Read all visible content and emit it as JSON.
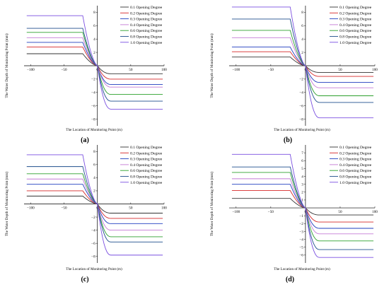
{
  "figure": {
    "panels": [
      "(a)",
      "(b)",
      "(c)",
      "(d)"
    ]
  },
  "legend_entries": [
    "0.1 Opening Degree",
    "0.2 Opening Degree",
    "0.3 Opening Degree",
    "0.4 Opening Degree",
    "0.6 Opening Degree",
    "0.8 Opening Degree",
    "1.0 Opening Degree"
  ],
  "series_colors": [
    "#333333",
    "#d62728",
    "#1f3dbf",
    "#c47ad6",
    "#2ca02c",
    "#1f4e8c",
    "#7a4fe0"
  ],
  "chart_data": [
    {
      "type": "line",
      "panel": "(a)",
      "xlabel": "The Location of Monitoring Point (m)",
      "ylabel": "The Water Depth of Monitoring Point (mm)",
      "xlim": [
        -110,
        100
      ],
      "ylim": [
        -9,
        9
      ],
      "xticks": [
        -100,
        -50,
        0,
        50,
        100
      ],
      "yticks": [
        -8,
        -6,
        -4,
        -2,
        0,
        2,
        4,
        6,
        8
      ],
      "series": [
        {
          "name": "0.1 Opening Degree",
          "upstream": 1.8,
          "downstream": -1.2
        },
        {
          "name": "0.2 Opening Degree",
          "upstream": 2.8,
          "downstream": -2.0
        },
        {
          "name": "0.3 Opening Degree",
          "upstream": 3.5,
          "downstream": -2.8
        },
        {
          "name": "0.4 Opening Degree",
          "upstream": 4.2,
          "downstream": -3.2
        },
        {
          "name": "0.6 Opening Degree",
          "upstream": 5.0,
          "downstream": -4.3
        },
        {
          "name": "0.8 Opening Degree",
          "upstream": 5.6,
          "downstream": -5.3
        },
        {
          "name": "1.0 Opening Degree",
          "upstream": 7.5,
          "downstream": -6.5
        }
      ]
    },
    {
      "type": "line",
      "panel": "(b)",
      "xlabel": "The Location of Monitoring Point (m)",
      "ylabel": "The Water Depth of Monitoring Point (mm)",
      "xlim": [
        -110,
        100
      ],
      "ylim": [
        -9,
        9
      ],
      "xticks": [
        -100,
        -50,
        0,
        50,
        100
      ],
      "yticks": [
        -8,
        -6,
        -4,
        -2,
        0,
        2,
        4,
        6,
        8
      ],
      "series": [
        {
          "name": "0.1 Opening Degree",
          "upstream": 1.3,
          "downstream": -1.0
        },
        {
          "name": "0.2 Opening Degree",
          "upstream": 2.1,
          "downstream": -1.6
        },
        {
          "name": "0.3 Opening Degree",
          "upstream": 2.8,
          "downstream": -2.5
        },
        {
          "name": "0.4 Opening Degree",
          "upstream": 4.2,
          "downstream": -3.3
        },
        {
          "name": "0.6 Opening Degree",
          "upstream": 5.3,
          "downstream": -4.5
        },
        {
          "name": "0.8 Opening Degree",
          "upstream": 7.0,
          "downstream": -5.5
        },
        {
          "name": "1.0 Opening Degree",
          "upstream": 8.8,
          "downstream": -7.8
        }
      ]
    },
    {
      "type": "line",
      "panel": "(c)",
      "xlabel": "The Location of Monitoring Point (m)",
      "ylabel": "The Water Depth of Monitoring Point (mm)",
      "xlim": [
        -110,
        100
      ],
      "ylim": [
        -9,
        9
      ],
      "xticks": [
        -100,
        -50,
        0,
        50,
        100
      ],
      "yticks": [
        -8,
        -6,
        -4,
        -2,
        0,
        2,
        4,
        6,
        8
      ],
      "series": [
        {
          "name": "0.1 Opening Degree",
          "upstream": 1.2,
          "downstream": -1.4
        },
        {
          "name": "0.2 Opening Degree",
          "upstream": 2.0,
          "downstream": -2.2
        },
        {
          "name": "0.3 Opening Degree",
          "upstream": 3.0,
          "downstream": -3.0
        },
        {
          "name": "0.4 Opening Degree",
          "upstream": 3.8,
          "downstream": -4.0
        },
        {
          "name": "0.6 Opening Degree",
          "upstream": 4.6,
          "downstream": -5.0
        },
        {
          "name": "0.8 Opening Degree",
          "upstream": 5.7,
          "downstream": -5.8
        },
        {
          "name": "1.0 Opening Degree",
          "upstream": 7.5,
          "downstream": -7.8
        }
      ]
    },
    {
      "type": "line",
      "panel": "(d)",
      "xlabel": "The Location of Monitoring Point (m)",
      "ylabel": "The Water Depth of Monitoring Point (mm)",
      "xlim": [
        -110,
        100
      ],
      "ylim": [
        -7,
        8
      ],
      "xticks": [
        -100,
        -50,
        0,
        50,
        100
      ],
      "yticks": [
        -6,
        -5,
        -4,
        -3,
        -2,
        -1,
        0,
        1,
        2,
        3,
        4,
        5,
        6,
        7
      ],
      "series": [
        {
          "name": "0.1 Opening Degree",
          "upstream": 1.2,
          "downstream": -0.9
        },
        {
          "name": "0.2 Opening Degree",
          "upstream": 2.2,
          "downstream": -1.8
        },
        {
          "name": "0.3 Opening Degree",
          "upstream": 3.0,
          "downstream": -2.6
        },
        {
          "name": "0.4 Opening Degree",
          "upstream": 3.7,
          "downstream": -3.3
        },
        {
          "name": "0.6 Opening Degree",
          "upstream": 4.5,
          "downstream": -4.2
        },
        {
          "name": "0.8 Opening Degree",
          "upstream": 5.2,
          "downstream": -5.3
        },
        {
          "name": "1.0 Opening Degree",
          "upstream": 6.8,
          "downstream": -6.3
        }
      ]
    }
  ]
}
